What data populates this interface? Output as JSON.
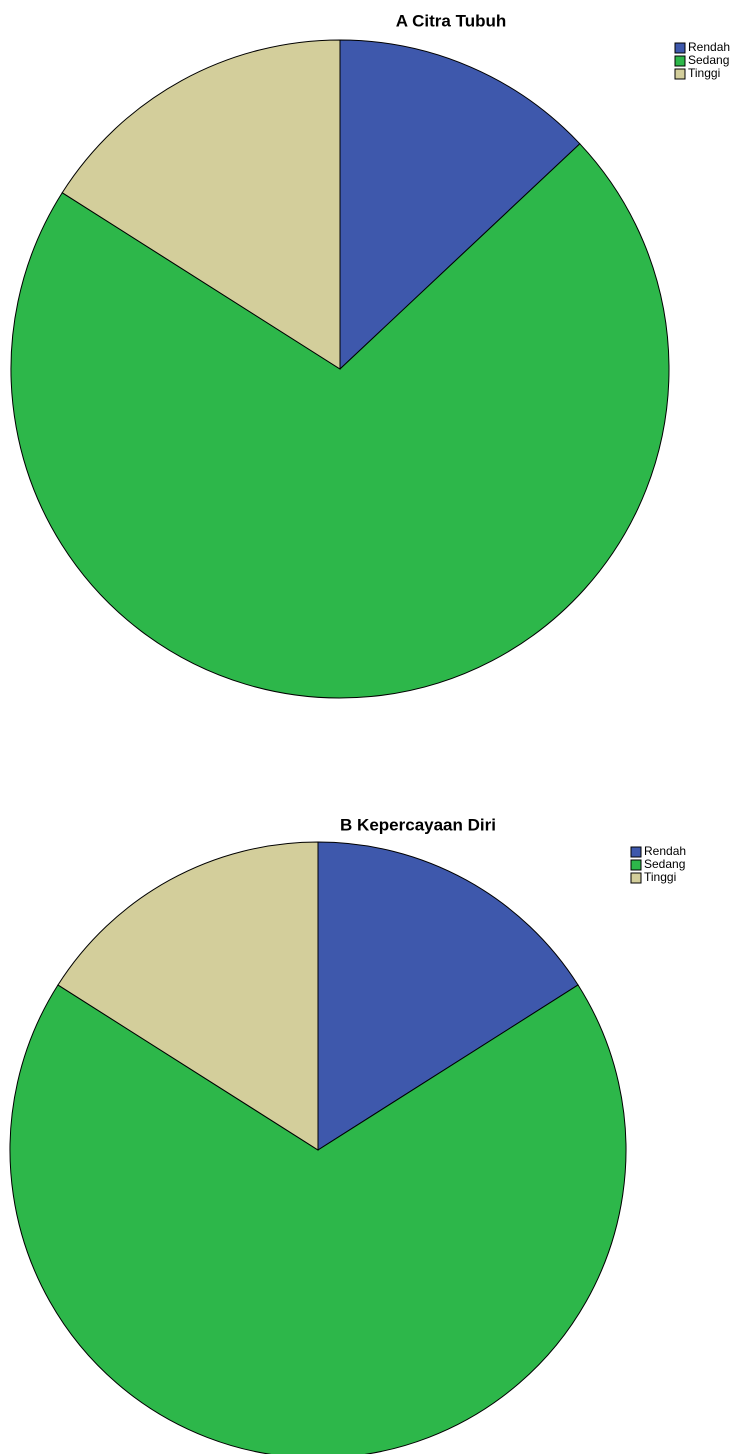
{
  "chart_data": [
    {
      "type": "pie",
      "title": "A Citra Tubuh",
      "categories": [
        "Rendah",
        "Sedang",
        "Tinggi"
      ],
      "values": [
        13,
        71,
        16
      ],
      "colors": [
        "#3e58ac",
        "#2db74a",
        "#d3ce9b"
      ]
    },
    {
      "type": "pie",
      "title": "B Kepercayaan Diri",
      "categories": [
        "Rendah",
        "Sedang",
        "Tinggi"
      ],
      "values": [
        16,
        68,
        16
      ],
      "colors": [
        "#3e58ac",
        "#2db74a",
        "#d3ce9b"
      ]
    }
  ]
}
